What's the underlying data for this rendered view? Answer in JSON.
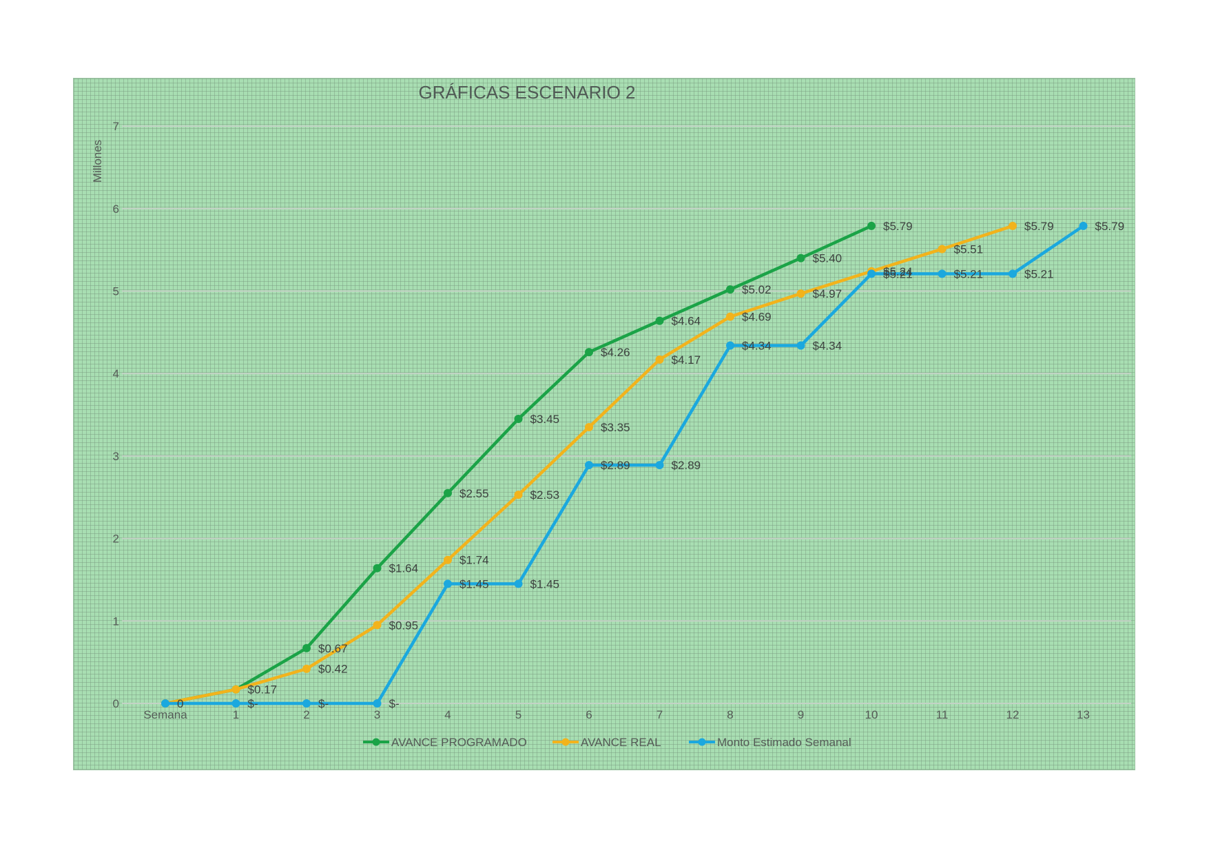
{
  "chart_data": {
    "type": "line",
    "title": "GRÁFICAS ESCENARIO 2",
    "ylabel": "Millones",
    "xlabel": "",
    "categories": [
      "Semana",
      "1",
      "2",
      "3",
      "4",
      "5",
      "6",
      "7",
      "8",
      "9",
      "10",
      "11",
      "12",
      "13"
    ],
    "ylim": [
      0,
      7
    ],
    "yticks": [
      "0",
      "1",
      "2",
      "3",
      "4",
      "5",
      "6",
      "7"
    ],
    "grid": true,
    "legend_position": "bottom",
    "series": [
      {
        "name": "AVANCE PROGRAMADO",
        "color": "#1ba347",
        "values": [
          0,
          0.17,
          0.67,
          1.64,
          2.55,
          3.45,
          4.26,
          4.64,
          5.02,
          5.4,
          5.79,
          null,
          null,
          null
        ],
        "labels": [
          "0",
          "",
          "$0.67",
          "$1.64",
          "$2.55",
          "$3.45",
          "$4.26",
          "$4.64",
          "$5.02",
          "$5.40",
          "$5.79",
          "",
          "",
          ""
        ]
      },
      {
        "name": "AVANCE REAL",
        "color": "#f2b31c",
        "values": [
          0,
          0.17,
          0.42,
          0.95,
          1.74,
          2.53,
          3.35,
          4.17,
          4.69,
          4.97,
          5.24,
          5.51,
          5.79,
          null
        ],
        "labels": [
          "",
          "$0.17",
          "$0.42",
          "$0.95",
          "$1.74",
          "$2.53",
          "$3.35",
          "$4.17",
          "$4.69",
          "$4.97",
          "$5.24",
          "$5.51",
          "$5.79",
          ""
        ]
      },
      {
        "name": "Monto Estimado Semanal",
        "color": "#1ba8de",
        "values": [
          0,
          0,
          0,
          0,
          1.45,
          1.45,
          2.89,
          2.89,
          4.34,
          4.34,
          5.21,
          5.21,
          5.21,
          5.79
        ],
        "labels": [
          "",
          "$-",
          "$-",
          "$-",
          "$1.45",
          "$1.45",
          "$2.89",
          "$2.89",
          "$4.34",
          "$4.34",
          "$5.21",
          "$5.21",
          "$5.21",
          "$5.79"
        ]
      }
    ]
  }
}
